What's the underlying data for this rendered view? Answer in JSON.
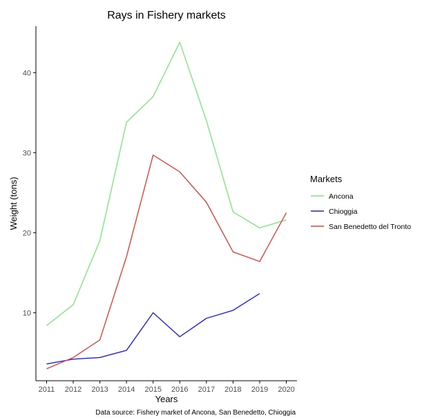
{
  "chart_data": {
    "type": "line",
    "title": "Rays in Fishery markets",
    "xlabel": "Years",
    "ylabel": "Weight (tons)",
    "caption": "Data source: Fishery market of Ancona, San Benedetto, Chioggia",
    "legend_title": "Markets",
    "legend_position": "right",
    "grid": false,
    "x": [
      2011,
      2012,
      2013,
      2014,
      2015,
      2016,
      2017,
      2018,
      2019,
      2020
    ],
    "xlim": [
      2010.6,
      2020.4
    ],
    "ylim": [
      1.5,
      45.8
    ],
    "yticks": [
      10,
      20,
      30,
      40
    ],
    "series": [
      {
        "name": "Ancona",
        "color": "#7ee87e",
        "values": [
          8.4,
          11.0,
          19.0,
          33.8,
          37.0,
          43.8,
          34.0,
          22.6,
          20.6,
          21.6
        ]
      },
      {
        "name": "Chioggia",
        "color": "#2222dd",
        "values": [
          3.6,
          4.2,
          4.4,
          5.3,
          10.0,
          7.0,
          9.3,
          10.3,
          12.4,
          null
        ]
      },
      {
        "name": "San Benedetto del Tronto",
        "color": "#e0423c",
        "values": [
          3.0,
          4.4,
          6.6,
          17.0,
          29.7,
          27.6,
          23.8,
          17.6,
          16.4,
          22.5
        ]
      }
    ]
  }
}
